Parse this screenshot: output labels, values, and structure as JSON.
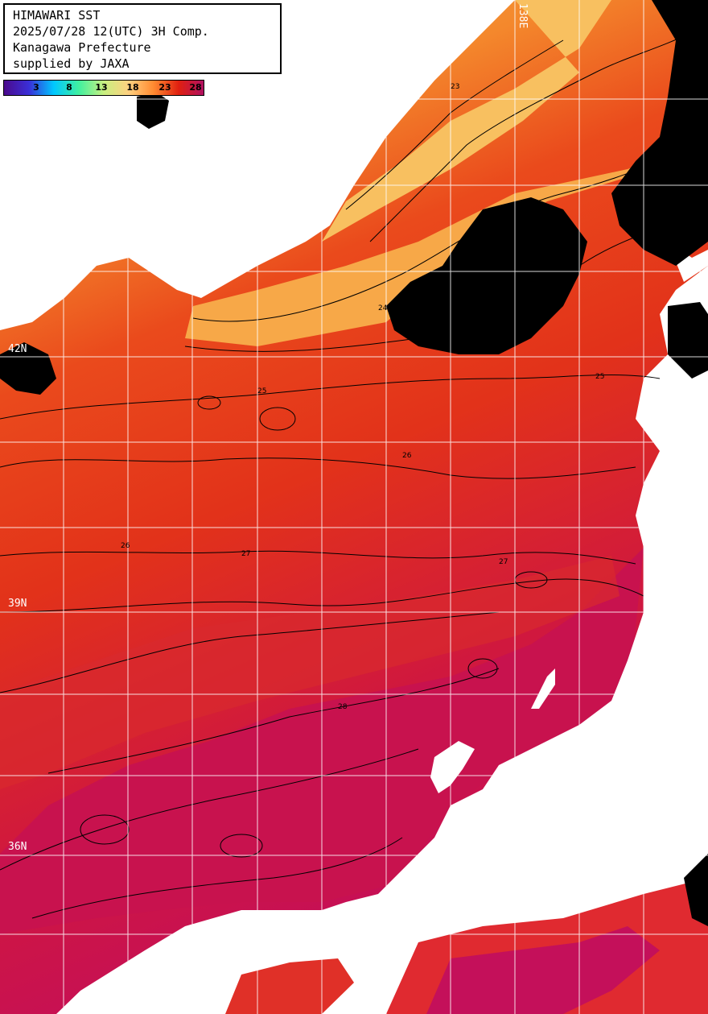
{
  "title": {
    "line1": "HIMAWARI SST",
    "line2": "2025/07/28 12(UTC) 3H Comp.",
    "line3": "Kanagawa Prefecture",
    "line4": "supplied by JAXA"
  },
  "colorbar": {
    "ticks": [
      "3",
      "8",
      "13",
      "18",
      "23",
      "28"
    ],
    "stops": [
      "#4b0a8c",
      "#3a2fd8",
      "#00c8ff",
      "#40f0a0",
      "#c8f080",
      "#ffd080",
      "#ff8a30",
      "#e02010",
      "#b01060"
    ]
  },
  "grid": {
    "lat_labels": [
      "42N",
      "39N",
      "36N"
    ],
    "lon_label": "138E"
  },
  "colors": {
    "land": "#ffffff",
    "cloud": "#000000",
    "sst_cold": "#f7b24a",
    "sst_mid": "#f26a1e",
    "sst_warm": "#e2361c",
    "sst_hot": "#c4105a",
    "gridline": "#ffffff",
    "contour": "#000000"
  },
  "contour_labels": [
    "25",
    "26",
    "26",
    "27",
    "27",
    "28",
    "25",
    "24",
    "23"
  ]
}
